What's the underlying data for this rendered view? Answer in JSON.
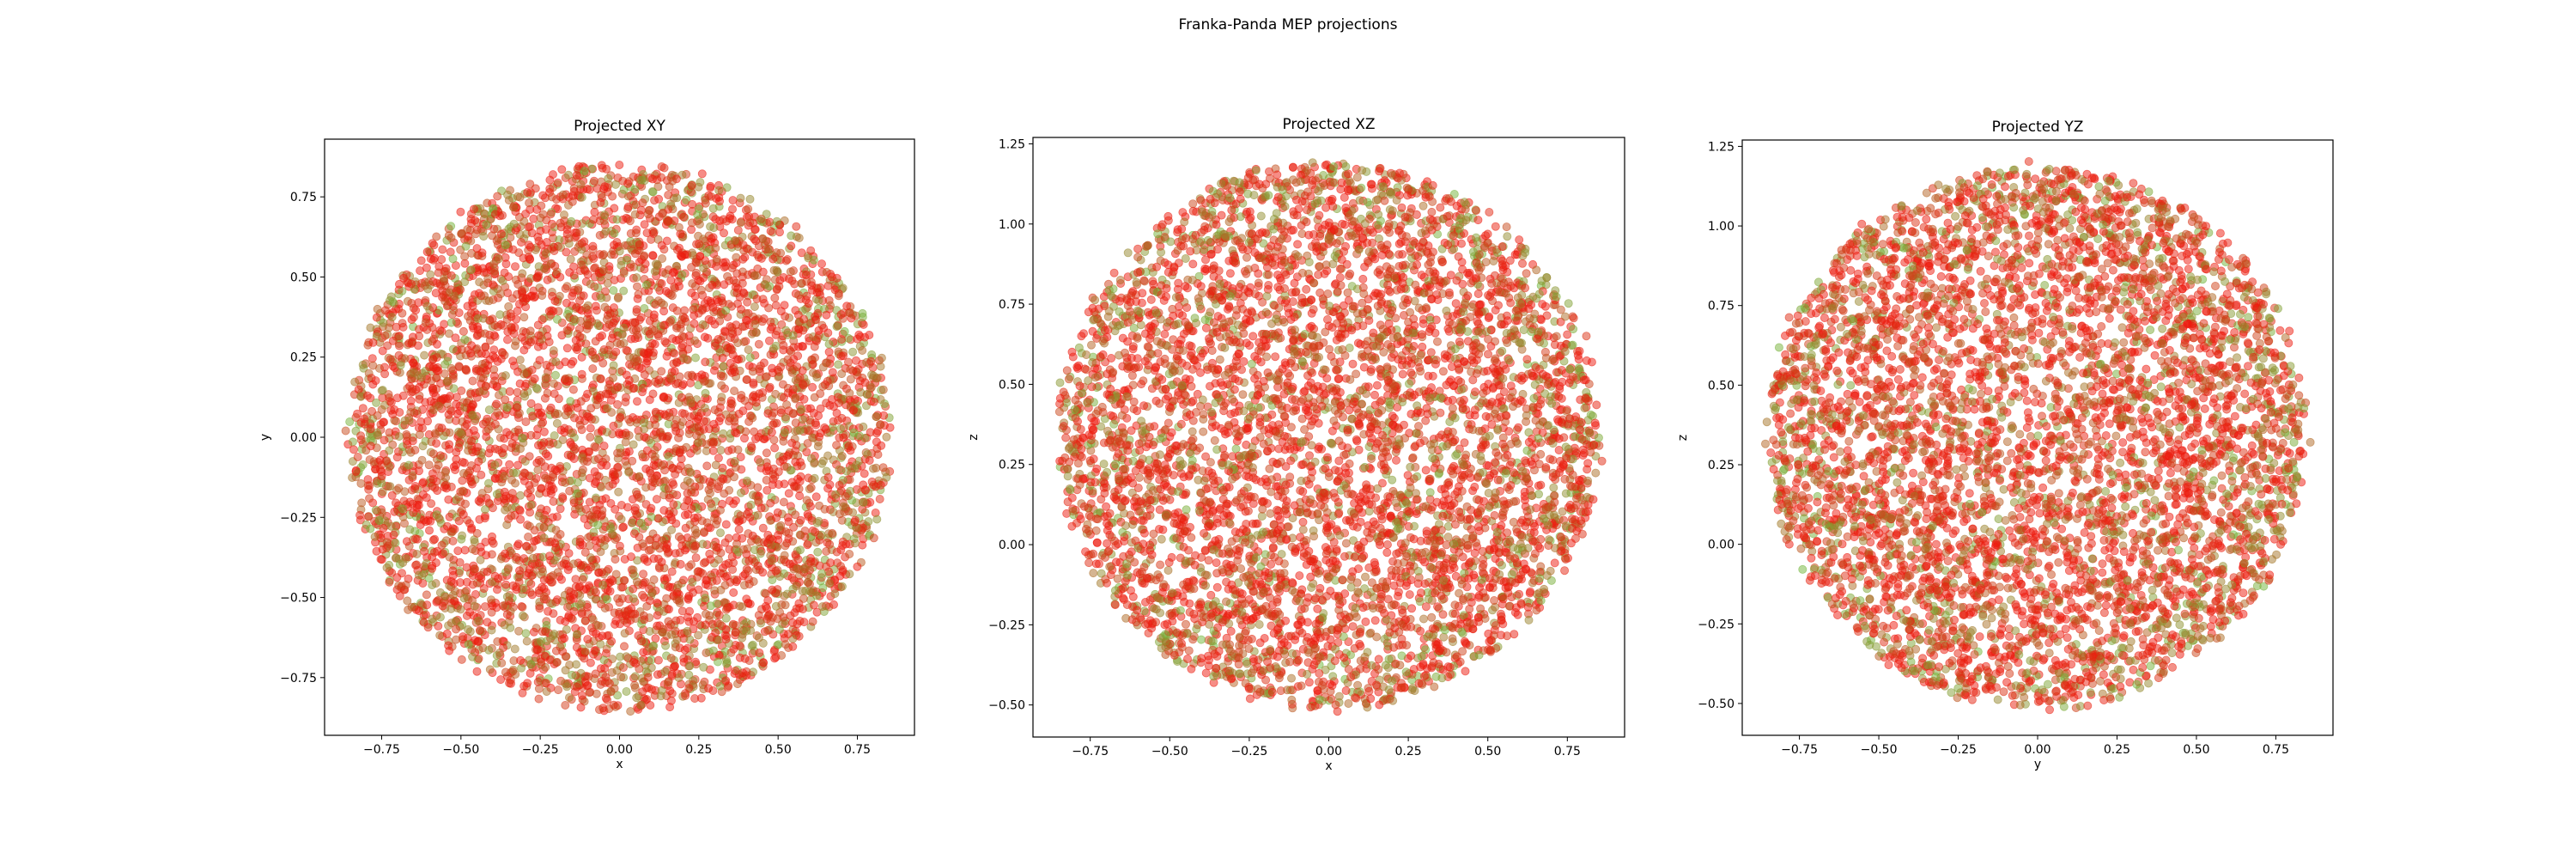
{
  "figure": {
    "suptitle": "Franka-Panda MEP projections"
  },
  "colors": {
    "red_points": "#ee1a0e",
    "green_points": "#6fb83a",
    "frame": "#000000"
  },
  "point_style": {
    "alpha": 0.5,
    "palette": "red-to-green blend, mostly red"
  },
  "chart_data": [
    {
      "type": "scatter",
      "title": "Projected XY",
      "xlabel": "x",
      "ylabel": "y",
      "xlim": [
        -0.93,
        0.93
      ],
      "ylim": [
        -0.93,
        0.93
      ],
      "xticks": [
        -0.75,
        -0.5,
        -0.25,
        0.0,
        0.25,
        0.5,
        0.75
      ],
      "yticks": [
        -0.75,
        -0.5,
        -0.25,
        0.0,
        0.25,
        0.5,
        0.75
      ],
      "xtick_labels": [
        "−0.75",
        "−0.50",
        "−0.25",
        "0.00",
        "0.25",
        "0.50",
        "0.75"
      ],
      "ytick_labels": [
        "−0.75",
        "−0.50",
        "−0.25",
        "0.00",
        "0.25",
        "0.50",
        "0.75"
      ],
      "cloud": {
        "shape": "disk",
        "center": [
          0.0,
          0.0
        ],
        "radius": [
          0.85,
          0.85
        ]
      },
      "grid": false,
      "legend": "none"
    },
    {
      "type": "scatter",
      "title": "Projected XZ",
      "xlabel": "x",
      "ylabel": "z",
      "xlim": [
        -0.93,
        0.93
      ],
      "ylim": [
        -0.6,
        1.27
      ],
      "xticks": [
        -0.75,
        -0.5,
        -0.25,
        0.0,
        0.25,
        0.5,
        0.75
      ],
      "yticks": [
        -0.5,
        -0.25,
        0.0,
        0.25,
        0.5,
        0.75,
        1.0,
        1.25
      ],
      "xtick_labels": [
        "−0.75",
        "−0.50",
        "−0.25",
        "0.00",
        "0.25",
        "0.50",
        "0.75"
      ],
      "ytick_labels": [
        "−0.50",
        "−0.25",
        "0.00",
        "0.25",
        "0.50",
        "0.75",
        "1.00",
        "1.25"
      ],
      "cloud": {
        "shape": "disk",
        "center": [
          0.0,
          0.34
        ],
        "radius": [
          0.85,
          0.85
        ]
      },
      "grid": false,
      "legend": "none"
    },
    {
      "type": "scatter",
      "title": "Projected YZ",
      "xlabel": "y",
      "ylabel": "z",
      "xlim": [
        -0.93,
        0.93
      ],
      "ylim": [
        -0.6,
        1.27
      ],
      "xticks": [
        -0.75,
        -0.5,
        -0.25,
        0.0,
        0.25,
        0.5,
        0.75
      ],
      "yticks": [
        -0.5,
        -0.25,
        0.0,
        0.25,
        0.5,
        0.75,
        1.0,
        1.25
      ],
      "xtick_labels": [
        "−0.75",
        "−0.50",
        "−0.25",
        "0.00",
        "0.25",
        "0.50",
        "0.75"
      ],
      "ytick_labels": [
        "−0.50",
        "−0.25",
        "0.00",
        "0.25",
        "0.50",
        "0.75",
        "1.00",
        "1.25"
      ],
      "cloud": {
        "shape": "disk",
        "center": [
          0.0,
          0.34
        ],
        "radius": [
          0.85,
          0.85
        ]
      },
      "grid": false,
      "legend": "none"
    }
  ]
}
